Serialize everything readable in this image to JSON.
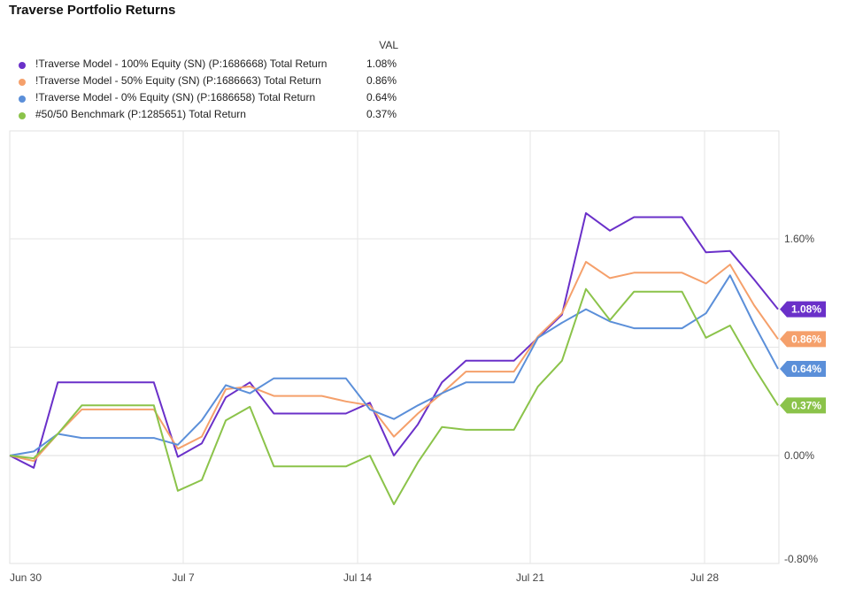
{
  "title": "Traverse Portfolio Returns",
  "legend_header": "VAL",
  "chart_data": {
    "type": "line",
    "title": "Traverse Portfolio Returns",
    "x_tick_labels": [
      "Jun 30",
      "Jul 7",
      "Jul 14",
      "Jul 21",
      "Jul 28"
    ],
    "y_tick_labels": [
      "1.60%",
      "0.00%",
      "-0.80%"
    ],
    "ylim": [
      -0.8,
      2.4
    ],
    "grid": true,
    "legend_position": "top-left",
    "series": [
      {
        "name": "!Traverse Model - 100% Equity (SN) (P:1686668) Total Return",
        "value_label": "1.08%",
        "color": "#6a30c9",
        "values": [
          0.0,
          -0.09,
          0.54,
          0.54,
          0.54,
          0.54,
          0.54,
          -0.01,
          0.09,
          0.43,
          0.54,
          0.31,
          0.31,
          0.31,
          0.31,
          0.39,
          0.0,
          0.23,
          0.54,
          0.7,
          0.7,
          0.7,
          0.87,
          1.04,
          1.79,
          1.66,
          1.76,
          1.76,
          1.76,
          1.5,
          1.51,
          1.3,
          1.08
        ]
      },
      {
        "name": "!Traverse Model - 50% Equity (SN) (P:1686663) Total Return",
        "value_label": "0.86%",
        "color": "#f5a06b",
        "values": [
          0.0,
          -0.04,
          0.16,
          0.34,
          0.34,
          0.34,
          0.34,
          0.05,
          0.14,
          0.49,
          0.51,
          0.44,
          0.44,
          0.44,
          0.4,
          0.37,
          0.14,
          0.31,
          0.46,
          0.62,
          0.62,
          0.62,
          0.88,
          1.05,
          1.43,
          1.31,
          1.35,
          1.35,
          1.35,
          1.27,
          1.41,
          1.11,
          0.86
        ]
      },
      {
        "name": "!Traverse Model - 0% Equity (SN) (P:1686658) Total Return",
        "value_label": "0.64%",
        "color": "#5b8fd9",
        "values": [
          0.0,
          0.03,
          0.16,
          0.13,
          0.13,
          0.13,
          0.13,
          0.08,
          0.26,
          0.52,
          0.46,
          0.57,
          0.57,
          0.57,
          0.57,
          0.34,
          0.27,
          0.37,
          0.46,
          0.54,
          0.54,
          0.54,
          0.87,
          0.98,
          1.08,
          0.99,
          0.94,
          0.94,
          0.94,
          1.05,
          1.33,
          0.97,
          0.64
        ]
      },
      {
        "name": "#50/50 Benchmark (P:1285651) Total Return",
        "value_label": "0.37%",
        "color": "#8bc34a",
        "values": [
          0.0,
          -0.02,
          0.16,
          0.37,
          0.37,
          0.37,
          0.37,
          -0.26,
          -0.18,
          0.26,
          0.36,
          -0.08,
          -0.08,
          -0.08,
          -0.08,
          0.0,
          -0.36,
          -0.05,
          0.21,
          0.19,
          0.19,
          0.19,
          0.51,
          0.7,
          1.23,
          1.0,
          1.21,
          1.21,
          1.21,
          0.87,
          0.96,
          0.65,
          0.37
        ]
      }
    ]
  }
}
